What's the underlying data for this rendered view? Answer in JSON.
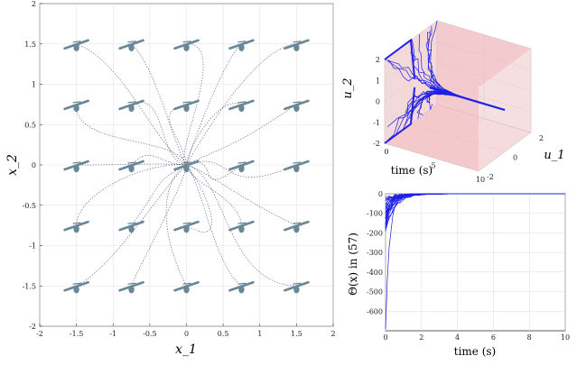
{
  "colors": {
    "traj": "#2b3a67",
    "drone": "#6a8797",
    "blue": "#1f1fe8",
    "planes": "#f0b3b6",
    "grid": "#e2e2e2"
  },
  "chart_data": [
    {
      "type": "scatter",
      "xlabel": "x_1",
      "ylabel": "x_2",
      "xlim": [
        -2,
        2
      ],
      "ylim": [
        -2,
        2
      ],
      "xticks": [
        "-2",
        "-1.5",
        "-1",
        "-0.5",
        "0",
        "0.5",
        "1",
        "1.5",
        "2"
      ],
      "yticks": [
        "-2",
        "-1.5",
        "-1",
        "-0.5",
        "0",
        "0.5",
        "1",
        "1.5",
        "2"
      ],
      "grid": true,
      "initial_positions_x": [
        -1.5,
        -0.75,
        0,
        0.75,
        1.5
      ],
      "initial_positions_y": [
        -1.5,
        -0.75,
        0,
        0.75,
        1.5
      ],
      "equilibrium": [
        0,
        0
      ],
      "marker": "drone-icon",
      "trajectories": "dotted paths from each drone to origin"
    },
    {
      "type": "line",
      "projection": "3d",
      "xlabel": "time (s)",
      "ylabel": "u_1",
      "zlabel": "u_2",
      "xticks": [
        "0",
        "5",
        "10"
      ],
      "yticks": [
        "-2",
        "0",
        "2"
      ],
      "zticks": [
        "-2",
        "-1",
        "0",
        "1",
        "2"
      ],
      "constraint_planes": [
        -2,
        2
      ]
    },
    {
      "type": "line",
      "xlabel": "time (s)",
      "ylabel": "Θ(x) in (57)",
      "xlim": [
        0,
        10
      ],
      "ylim": [
        -700,
        0
      ],
      "xticks": [
        "0",
        "2",
        "4",
        "6",
        "8",
        "10"
      ],
      "yticks": [
        "0",
        "-100",
        "-200",
        "-300",
        "-400",
        "-500",
        "-600"
      ],
      "grid": true,
      "series_count": 25,
      "settle_time": 4
    }
  ]
}
